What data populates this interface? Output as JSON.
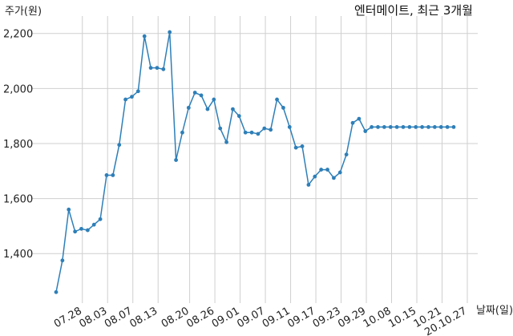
{
  "chart_data": {
    "type": "line",
    "title": "엔터메이트, 최근 3개월",
    "ylabel": "주가(원)",
    "xlabel": "날짜(일)",
    "ylim": [
      1220,
      2240
    ],
    "yticks": [
      1400,
      1600,
      1800,
      2000,
      2200
    ],
    "ytick_labels": [
      "1,400",
      "1,600",
      "1,800",
      "2,000",
      "2,200"
    ],
    "grid": true,
    "color": "#2e7fb8",
    "xtick_labels": [
      "07.28",
      "08.03",
      "08.07",
      "08.13",
      "08.20",
      "08.26",
      "09.01",
      "09.07",
      "09.11",
      "09.17",
      "09.23",
      "09.29",
      "10.08",
      "10.15",
      "10.21",
      "20.10.27"
    ],
    "xtick_index": [
      2,
      6,
      10,
      14,
      19,
      23,
      27,
      31,
      35,
      39,
      43,
      47,
      51,
      55,
      59,
      63
    ],
    "values": [
      1260,
      1375,
      1560,
      1480,
      1490,
      1485,
      1505,
      1525,
      1685,
      1685,
      1795,
      1960,
      1970,
      1990,
      2190,
      2075,
      2075,
      2070,
      2205,
      1740,
      1840,
      1930,
      1985,
      1975,
      1925,
      1960,
      1855,
      1805,
      1925,
      1900,
      1840,
      1840,
      1835,
      1855,
      1850,
      1960,
      1930,
      1860,
      1785,
      1790,
      1650,
      1680,
      1705,
      1705,
      1675,
      1695,
      1760,
      1875,
      1890,
      1845,
      1860,
      1860,
      1860,
      1860,
      1860,
      1860,
      1860,
      1860,
      1860,
      1860,
      1860,
      1860,
      1860,
      1860
    ]
  }
}
